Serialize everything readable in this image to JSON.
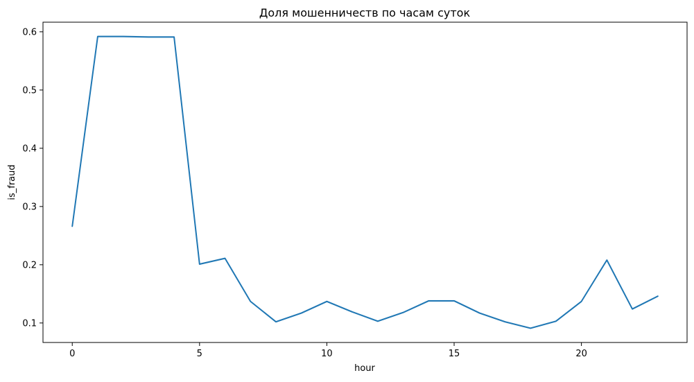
{
  "chart_data": {
    "type": "line",
    "title": "Доля мошенничеств по часам суток",
    "xlabel": "hour",
    "ylabel": "is_fraud",
    "xlim": [
      -1.15,
      24.15
    ],
    "ylim": [
      0.0665,
      0.6165
    ],
    "xticks": [
      0,
      5,
      10,
      15,
      20
    ],
    "yticks": [
      0.1,
      0.2,
      0.3,
      0.4,
      0.5,
      0.6
    ],
    "ytick_labels": [
      "0.1",
      "0.2",
      "0.3",
      "0.4",
      "0.5",
      "0.6"
    ],
    "grid": false,
    "legend": "none",
    "series": [
      {
        "color": "#1f77b4",
        "x": [
          0,
          1,
          2,
          3,
          4,
          5,
          6,
          7,
          8,
          9,
          10,
          11,
          12,
          13,
          14,
          15,
          16,
          17,
          18,
          19,
          20,
          21,
          22,
          23
        ],
        "values": [
          0.266,
          0.592,
          0.592,
          0.591,
          0.591,
          0.201,
          0.211,
          0.137,
          0.102,
          0.117,
          0.137,
          0.119,
          0.103,
          0.118,
          0.138,
          0.138,
          0.117,
          0.102,
          0.091,
          0.103,
          0.137,
          0.208,
          0.124,
          0.146
        ]
      }
    ]
  }
}
